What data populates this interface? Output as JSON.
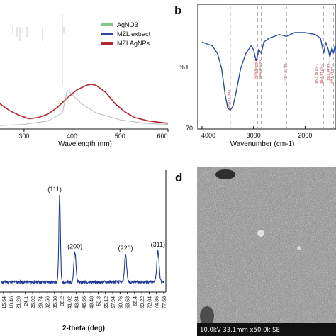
{
  "colors": {
    "agno3": "#7fc98a",
    "mzl": "#2c4a9c",
    "mzlagnps": "#b3262f",
    "xrd": "#1f3a93",
    "ftir": "#2b4da0",
    "ftir_label": "#b3262f"
  },
  "chart_data": [
    {
      "id": "uvvis",
      "type": "line",
      "panel": "a",
      "xlabel": "Wavelength (nm)",
      "xlim": [
        250,
        600
      ],
      "ylim": [
        0,
        1
      ],
      "xticks": [
        300,
        400,
        500,
        600
      ],
      "tick_labels": [
        "300",
        "400",
        "500",
        "600"
      ],
      "legend": [
        "AgNO3",
        "MZL extract",
        "MZLAgNPs"
      ],
      "legend_position": "top-right",
      "series": [
        {
          "name": "MZLAgNPs",
          "x": [
            250,
            270,
            290,
            310,
            330,
            350,
            370,
            390,
            410,
            430,
            440,
            450,
            470,
            490,
            510,
            530,
            560,
            600
          ],
          "y": [
            0.22,
            0.16,
            0.12,
            0.09,
            0.1,
            0.13,
            0.19,
            0.27,
            0.34,
            0.38,
            0.39,
            0.38,
            0.32,
            0.22,
            0.15,
            0.1,
            0.07,
            0.05
          ]
        },
        {
          "name": "MZL extract",
          "x": [
            250,
            300,
            350,
            380,
            390,
            400,
            420,
            450,
            500,
            550,
            600
          ],
          "y": [
            0.03,
            0.04,
            0.07,
            0.14,
            0.34,
            0.3,
            0.22,
            0.14,
            0.08,
            0.05,
            0.04
          ]
        }
      ]
    },
    {
      "id": "ftir",
      "type": "line",
      "panel": "b",
      "xlabel": "Wavenumber (cm-1)",
      "ylabel": "%T",
      "xlim": [
        4000,
        1400
      ],
      "ylim": [
        70,
        100
      ],
      "xticks": [
        4000,
        3000,
        2000
      ],
      "tick_labels": [
        "4000",
        "3000",
        "2000"
      ],
      "ytick_labels": [
        "70"
      ],
      "ref_lines": [
        3450,
        2920,
        2850,
        2360,
        1640,
        1520,
        1450
      ],
      "series": [
        {
          "name": "FTIR",
          "x": [
            4000,
            3900,
            3800,
            3700,
            3620,
            3550,
            3500,
            3450,
            3400,
            3350,
            3250,
            3150,
            3050,
            3000,
            2950,
            2920,
            2900,
            2850,
            2800,
            2700,
            2500,
            2360,
            2200,
            2000,
            1800,
            1700,
            1640,
            1600,
            1550,
            1520,
            1480,
            1450,
            1420,
            1400
          ],
          "y": [
            93,
            92.5,
            92,
            90,
            86,
            79,
            75.5,
            75,
            76,
            79,
            86,
            90,
            92,
            91,
            88,
            89.5,
            91,
            90,
            93,
            94,
            95,
            94.5,
            95.5,
            95.5,
            95,
            94,
            90,
            93,
            91,
            89,
            91.5,
            90,
            92,
            91
          ]
        }
      ],
      "peak_labels": [
        "3456.17 cm-1",
        "2920.89 cm-1",
        "2851.48 cm-1",
        "2362.82 cm-1",
        "1747.75 cm-1",
        "1649.57 cm-1",
        "1519.34 cm-1",
        "1456.23 cm-1"
      ]
    },
    {
      "id": "xrd",
      "type": "line",
      "panel": "c",
      "xlabel": "2-theta (deg)",
      "xlim": [
        15,
        80
      ],
      "tick_labels": [
        "15.64",
        "18.46",
        "21.28",
        "24.1",
        "26.92",
        "29.74",
        "32.56",
        "35.38",
        "38.2",
        "41.02",
        "43.84",
        "46.66",
        "49.48",
        "52.3",
        "55.12",
        "57.94",
        "60.76",
        "63.58",
        "66.4",
        "69.22",
        "72.04",
        "74.86",
        "77.68"
      ],
      "peaks": [
        {
          "label": "(111)",
          "x": 38.2,
          "y": 1.0
        },
        {
          "label": "(200)",
          "x": 44.3,
          "y": 0.34
        },
        {
          "label": "(220)",
          "x": 64.5,
          "y": 0.32
        },
        {
          "label": "(311)",
          "x": 77.4,
          "y": 0.36
        }
      ],
      "baseline": 0.05
    }
  ],
  "panels": {
    "b_label": "b",
    "d_label": "d"
  },
  "sem": {
    "info": "10.0kV 33.1mm x50.0k SE"
  }
}
